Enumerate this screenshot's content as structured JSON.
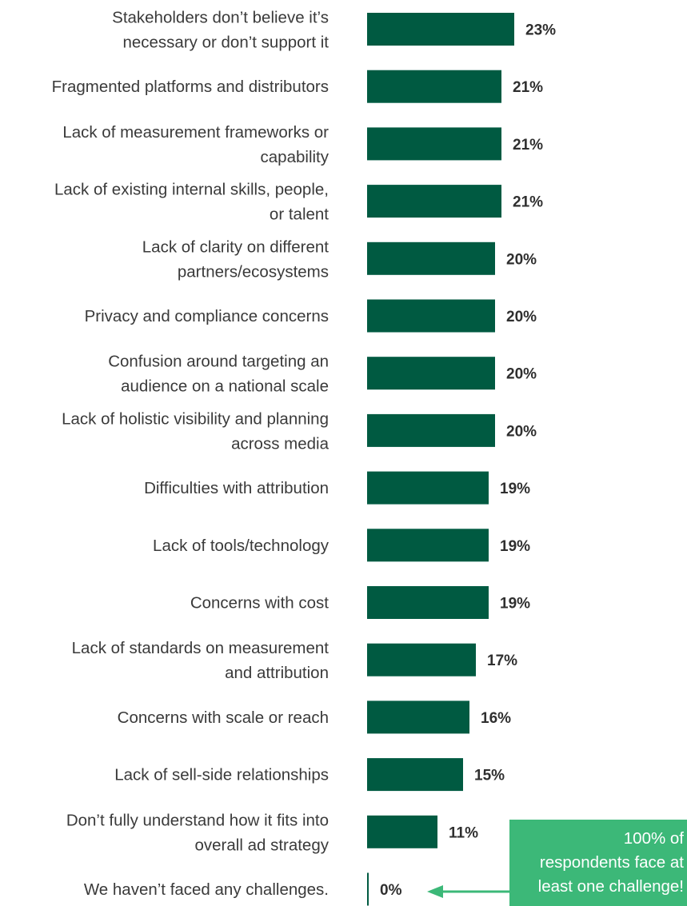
{
  "chart_data": {
    "type": "bar",
    "orientation": "horizontal",
    "categories": [
      "Stakeholders don’t believe it’s necessary or don’t support it",
      "Fragmented platforms and distributors",
      "Lack of measurement frameworks or capability",
      "Lack of existing internal skills, people, or talent",
      "Lack of clarity on different partners/ecosystems",
      "Privacy and compliance concerns",
      "Confusion around targeting an audience on a national scale",
      "Lack of holistic visibility and planning across media",
      "Difficulties with attribution",
      "Lack of tools/technology",
      "Concerns with cost",
      "Lack of standards on measurement and attribution",
      "Concerns with scale or reach",
      "Lack of sell-side relationships",
      "Don’t fully understand how it fits into overall ad strategy",
      "We haven’t faced any challenges."
    ],
    "label_lines": [
      [
        "Stakeholders don’t believe it’s",
        "necessary or don’t support it"
      ],
      [
        "Fragmented platforms and distributors"
      ],
      [
        "Lack of measurement frameworks or",
        "capability"
      ],
      [
        "Lack of existing internal skills, people,",
        "or talent"
      ],
      [
        "Lack of clarity on different",
        "partners/ecosystems"
      ],
      [
        "Privacy and compliance concerns"
      ],
      [
        "Confusion around targeting an",
        "audience on a national scale"
      ],
      [
        "Lack of holistic visibility and planning",
        "across media"
      ],
      [
        "Difficulties with attribution"
      ],
      [
        "Lack of tools/technology"
      ],
      [
        "Concerns with cost"
      ],
      [
        "Lack of standards on measurement",
        "and attribution"
      ],
      [
        "Concerns with scale or reach"
      ],
      [
        "Lack of sell-side relationships"
      ],
      [
        "Don’t fully understand how it fits into",
        "overall ad strategy"
      ],
      [
        "We haven’t faced any challenges."
      ]
    ],
    "values": [
      23,
      21,
      21,
      21,
      20,
      20,
      20,
      20,
      19,
      19,
      19,
      17,
      16,
      15,
      11,
      0
    ],
    "value_labels": [
      "23%",
      "21%",
      "21%",
      "21%",
      "20%",
      "20%",
      "20%",
      "20%",
      "19%",
      "19%",
      "19%",
      "17%",
      "16%",
      "15%",
      "11%",
      "0%"
    ],
    "title": "",
    "xlabel": "",
    "ylabel": "",
    "xlim": [
      0,
      23
    ],
    "grid": false,
    "legend": "none",
    "bar_color": "#005a41",
    "zero_bar_color": "#005a41"
  },
  "callout": {
    "text": "100% of\nrespondents face at\nleast one challenge!",
    "color": "#3cb878",
    "arrow_color": "#3cb878",
    "points_to": "We haven’t faced any challenges."
  }
}
